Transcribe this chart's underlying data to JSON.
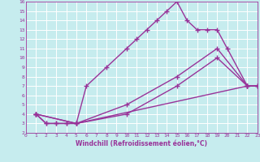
{
  "xlabel": "Windchill (Refroidissement éolien,°C)",
  "xlim": [
    0,
    23
  ],
  "ylim": [
    2,
    16
  ],
  "xticks": [
    0,
    1,
    2,
    3,
    4,
    5,
    6,
    7,
    8,
    9,
    10,
    11,
    12,
    13,
    14,
    15,
    16,
    17,
    18,
    19,
    20,
    21,
    22,
    23
  ],
  "yticks": [
    2,
    3,
    4,
    5,
    6,
    7,
    8,
    9,
    10,
    11,
    12,
    13,
    14,
    15,
    16
  ],
  "bg_color": "#c6ecee",
  "grid_color": "#ffffff",
  "line_color": "#993399",
  "line_width": 1.0,
  "marker": "+",
  "markersize": 4,
  "markeredgewidth": 1.0,
  "tick_fontsize": 4.5,
  "xlabel_fontsize": 5.5,
  "curves": [
    {
      "x": [
        1,
        2,
        3,
        4,
        5,
        6,
        8,
        10,
        11,
        12,
        13,
        14,
        15,
        16,
        17,
        18,
        19,
        20,
        22,
        23
      ],
      "y": [
        4,
        3,
        3,
        3,
        3,
        7,
        9,
        11,
        12,
        13,
        14,
        15,
        16,
        14,
        13,
        13,
        13,
        11,
        7,
        7
      ]
    },
    {
      "x": [
        1,
        2,
        3,
        4,
        5,
        22,
        23
      ],
      "y": [
        4,
        3,
        3,
        3,
        3,
        7,
        7
      ]
    },
    {
      "x": [
        1,
        5,
        10,
        15,
        19,
        22,
        23
      ],
      "y": [
        4,
        3,
        5,
        8,
        11,
        7,
        7
      ]
    },
    {
      "x": [
        1,
        5,
        10,
        15,
        19,
        22,
        23
      ],
      "y": [
        4,
        3,
        4,
        7,
        10,
        7,
        7
      ]
    }
  ]
}
